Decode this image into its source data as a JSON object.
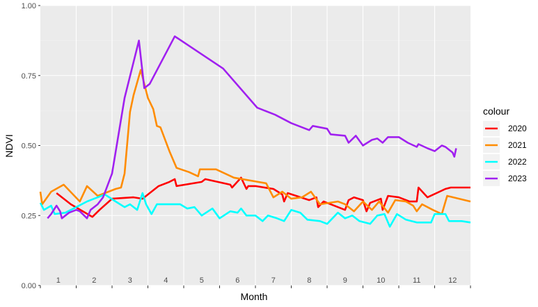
{
  "chart_data": {
    "type": "line",
    "title": "",
    "xlabel": "Month",
    "ylabel": "NDVI",
    "xlim": [
      0,
      12
    ],
    "ylim": [
      0,
      1
    ],
    "y_ticks": [
      "0.00",
      "0.25",
      "0.50",
      "0.75",
      "1.00"
    ],
    "y_tick_values": [
      0,
      0.25,
      0.5,
      0.75,
      1.0
    ],
    "x_ticks": [
      "1",
      "2",
      "3",
      "4",
      "5",
      "6",
      "7",
      "8",
      "9",
      "10",
      "11",
      "12"
    ],
    "grid": true,
    "background": "#ebebeb",
    "legend": {
      "title": "colour",
      "position": "right"
    },
    "series": [
      {
        "name": "2020",
        "color": "#ff0000",
        "points": [
          [
            0.45,
            0.33
          ],
          [
            0.85,
            0.29
          ],
          [
            1.45,
            0.245
          ],
          [
            1.65,
            0.27
          ],
          [
            2.0,
            0.31
          ],
          [
            2.6,
            0.315
          ],
          [
            2.85,
            0.31
          ],
          [
            3.3,
            0.355
          ],
          [
            3.6,
            0.37
          ],
          [
            3.75,
            0.38
          ],
          [
            3.8,
            0.355
          ],
          [
            4.5,
            0.37
          ],
          [
            4.6,
            0.38
          ],
          [
            5.3,
            0.36
          ],
          [
            5.35,
            0.35
          ],
          [
            5.6,
            0.385
          ],
          [
            5.75,
            0.345
          ],
          [
            5.8,
            0.355
          ],
          [
            6.0,
            0.355
          ],
          [
            6.5,
            0.345
          ],
          [
            6.75,
            0.325
          ],
          [
            6.8,
            0.3
          ],
          [
            6.9,
            0.33
          ],
          [
            7.5,
            0.305
          ],
          [
            7.7,
            0.315
          ],
          [
            7.75,
            0.28
          ],
          [
            7.9,
            0.3
          ],
          [
            8.5,
            0.27
          ],
          [
            8.6,
            0.305
          ],
          [
            8.75,
            0.315
          ],
          [
            9.0,
            0.305
          ],
          [
            9.1,
            0.265
          ],
          [
            9.2,
            0.295
          ],
          [
            9.5,
            0.31
          ],
          [
            9.55,
            0.27
          ],
          [
            9.7,
            0.32
          ],
          [
            10.0,
            0.315
          ],
          [
            10.3,
            0.3
          ],
          [
            10.5,
            0.3
          ],
          [
            10.55,
            0.35
          ],
          [
            10.8,
            0.315
          ],
          [
            11.3,
            0.345
          ],
          [
            11.45,
            0.35
          ],
          [
            12.0,
            0.35
          ]
        ]
      },
      {
        "name": "2021",
        "color": "#ff8c00",
        "points": [
          [
            0.0,
            0.335
          ],
          [
            0.05,
            0.29
          ],
          [
            0.3,
            0.335
          ],
          [
            0.65,
            0.36
          ],
          [
            1.1,
            0.3
          ],
          [
            1.3,
            0.355
          ],
          [
            1.6,
            0.32
          ],
          [
            2.1,
            0.345
          ],
          [
            2.25,
            0.35
          ],
          [
            2.35,
            0.4
          ],
          [
            2.5,
            0.62
          ],
          [
            2.6,
            0.68
          ],
          [
            2.8,
            0.77
          ],
          [
            3.0,
            0.67
          ],
          [
            3.15,
            0.63
          ],
          [
            3.25,
            0.57
          ],
          [
            3.35,
            0.565
          ],
          [
            3.6,
            0.48
          ],
          [
            3.8,
            0.42
          ],
          [
            4.15,
            0.405
          ],
          [
            4.4,
            0.39
          ],
          [
            4.45,
            0.415
          ],
          [
            4.9,
            0.415
          ],
          [
            5.4,
            0.385
          ],
          [
            6.3,
            0.365
          ],
          [
            6.5,
            0.315
          ],
          [
            6.75,
            0.335
          ],
          [
            7.0,
            0.31
          ],
          [
            7.3,
            0.315
          ],
          [
            7.55,
            0.335
          ],
          [
            7.8,
            0.29
          ],
          [
            8.3,
            0.3
          ],
          [
            8.5,
            0.29
          ],
          [
            8.75,
            0.265
          ],
          [
            9.0,
            0.3
          ],
          [
            9.25,
            0.27
          ],
          [
            9.45,
            0.3
          ],
          [
            9.7,
            0.26
          ],
          [
            9.9,
            0.305
          ],
          [
            10.2,
            0.3
          ],
          [
            10.4,
            0.285
          ],
          [
            10.5,
            0.265
          ],
          [
            10.65,
            0.29
          ],
          [
            10.95,
            0.27
          ],
          [
            11.2,
            0.255
          ],
          [
            11.35,
            0.32
          ],
          [
            12.0,
            0.3
          ]
        ]
      },
      {
        "name": "2022",
        "color": "#00ffff",
        "points": [
          [
            0.0,
            0.295
          ],
          [
            0.1,
            0.27
          ],
          [
            0.3,
            0.285
          ],
          [
            0.4,
            0.255
          ],
          [
            0.7,
            0.26
          ],
          [
            1.0,
            0.28
          ],
          [
            1.3,
            0.3
          ],
          [
            1.5,
            0.31
          ],
          [
            1.8,
            0.325
          ],
          [
            2.1,
            0.3
          ],
          [
            2.35,
            0.28
          ],
          [
            2.5,
            0.29
          ],
          [
            2.7,
            0.27
          ],
          [
            2.85,
            0.33
          ],
          [
            2.95,
            0.29
          ],
          [
            3.1,
            0.255
          ],
          [
            3.25,
            0.29
          ],
          [
            3.6,
            0.29
          ],
          [
            3.9,
            0.29
          ],
          [
            4.1,
            0.275
          ],
          [
            4.3,
            0.28
          ],
          [
            4.5,
            0.25
          ],
          [
            4.8,
            0.275
          ],
          [
            5.0,
            0.24
          ],
          [
            5.3,
            0.265
          ],
          [
            5.5,
            0.26
          ],
          [
            5.6,
            0.275
          ],
          [
            5.75,
            0.25
          ],
          [
            5.9,
            0.25
          ],
          [
            6.0,
            0.25
          ],
          [
            6.2,
            0.23
          ],
          [
            6.35,
            0.25
          ],
          [
            6.6,
            0.24
          ],
          [
            6.8,
            0.23
          ],
          [
            7.0,
            0.27
          ],
          [
            7.25,
            0.26
          ],
          [
            7.45,
            0.235
          ],
          [
            7.8,
            0.23
          ],
          [
            8.0,
            0.22
          ],
          [
            8.3,
            0.26
          ],
          [
            8.5,
            0.24
          ],
          [
            8.7,
            0.25
          ],
          [
            8.9,
            0.23
          ],
          [
            9.2,
            0.22
          ],
          [
            9.4,
            0.25
          ],
          [
            9.6,
            0.255
          ],
          [
            9.75,
            0.21
          ],
          [
            9.95,
            0.255
          ],
          [
            10.2,
            0.235
          ],
          [
            10.5,
            0.225
          ],
          [
            10.9,
            0.225
          ],
          [
            11.0,
            0.255
          ],
          [
            11.3,
            0.255
          ],
          [
            11.4,
            0.23
          ],
          [
            11.75,
            0.23
          ],
          [
            12.0,
            0.225
          ]
        ]
      },
      {
        "name": "2023",
        "color": "#a020f0",
        "points": [
          [
            0.2,
            0.24
          ],
          [
            0.3,
            0.255
          ],
          [
            0.45,
            0.285
          ],
          [
            0.55,
            0.265
          ],
          [
            0.6,
            0.24
          ],
          [
            0.8,
            0.26
          ],
          [
            1.0,
            0.27
          ],
          [
            1.1,
            0.265
          ],
          [
            1.3,
            0.24
          ],
          [
            1.4,
            0.27
          ],
          [
            1.6,
            0.29
          ],
          [
            1.75,
            0.315
          ],
          [
            2.0,
            0.4
          ],
          [
            2.35,
            0.67
          ],
          [
            2.75,
            0.875
          ],
          [
            2.9,
            0.705
          ],
          [
            3.05,
            0.72
          ],
          [
            3.75,
            0.89
          ],
          [
            5.1,
            0.775
          ],
          [
            6.05,
            0.635
          ],
          [
            6.55,
            0.61
          ],
          [
            7.0,
            0.58
          ],
          [
            7.5,
            0.555
          ],
          [
            7.6,
            0.57
          ],
          [
            8.0,
            0.56
          ],
          [
            8.1,
            0.54
          ],
          [
            8.5,
            0.535
          ],
          [
            8.6,
            0.51
          ],
          [
            8.8,
            0.535
          ],
          [
            9.0,
            0.5
          ],
          [
            9.25,
            0.52
          ],
          [
            9.4,
            0.525
          ],
          [
            9.55,
            0.51
          ],
          [
            9.7,
            0.53
          ],
          [
            10.0,
            0.53
          ],
          [
            10.25,
            0.51
          ],
          [
            10.5,
            0.495
          ],
          [
            10.55,
            0.505
          ],
          [
            10.8,
            0.49
          ],
          [
            11.0,
            0.48
          ],
          [
            11.2,
            0.5
          ],
          [
            11.3,
            0.495
          ],
          [
            11.5,
            0.475
          ],
          [
            11.55,
            0.46
          ],
          [
            11.6,
            0.49
          ]
        ]
      }
    ]
  }
}
